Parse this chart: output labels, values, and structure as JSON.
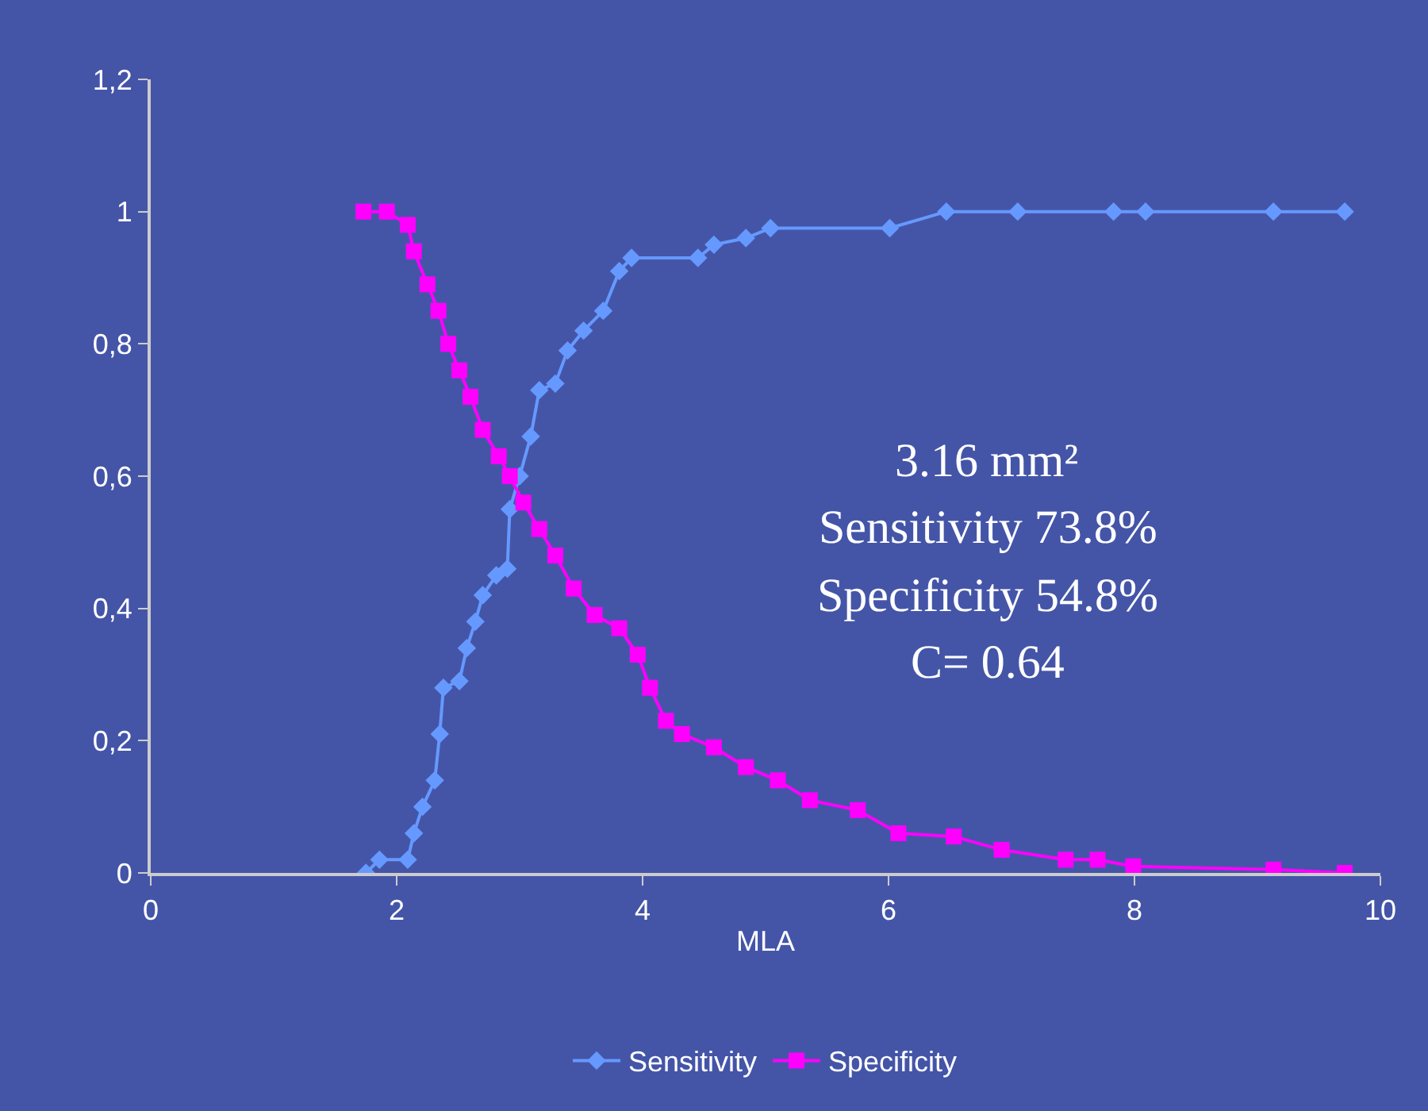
{
  "chart_data": {
    "type": "line",
    "xlabel": "MLA",
    "xlim": [
      0,
      10
    ],
    "xticks": [
      0,
      2,
      4,
      6,
      8,
      10
    ],
    "ylim": [
      0,
      1.2
    ],
    "yticks": [
      0,
      {
        "value": 0.2,
        "label": "0,2"
      },
      {
        "value": 0.4,
        "label": "0,4"
      },
      {
        "value": 0.6,
        "label": "0,6"
      },
      {
        "value": 0.8,
        "label": "0,8"
      },
      1,
      {
        "value": 1.2,
        "label": "1,2"
      }
    ],
    "grid": false,
    "legend": "bottom",
    "series": [
      {
        "name": "Sensitivity",
        "color": "#6699ff",
        "marker": "diamond",
        "x": [
          1.75,
          1.86,
          2.09,
          2.14,
          2.21,
          2.31,
          2.35,
          2.38,
          2.51,
          2.57,
          2.64,
          2.7,
          2.81,
          2.9,
          2.92,
          3.0,
          3.09,
          3.16,
          3.29,
          3.39,
          3.52,
          3.68,
          3.81,
          3.91,
          4.45,
          4.58,
          4.84,
          5.04,
          6.01,
          6.47,
          7.05,
          7.83,
          8.09,
          9.13,
          9.71
        ],
        "values": [
          0,
          0.02,
          0.02,
          0.06,
          0.1,
          0.14,
          0.21,
          0.28,
          0.29,
          0.34,
          0.38,
          0.42,
          0.45,
          0.46,
          0.55,
          0.6,
          0.66,
          0.73,
          0.74,
          0.79,
          0.82,
          0.85,
          0.91,
          0.93,
          0.93,
          0.95,
          0.96,
          0.975,
          0.975,
          1,
          1,
          1,
          1,
          1,
          1
        ]
      },
      {
        "name": "Specificity",
        "color": "#ff00ff",
        "marker": "square",
        "x": [
          1.73,
          1.92,
          2.09,
          2.14,
          2.25,
          2.34,
          2.42,
          2.51,
          2.6,
          2.7,
          2.83,
          2.92,
          3.03,
          3.16,
          3.29,
          3.44,
          3.61,
          3.81,
          3.96,
          4.06,
          4.19,
          4.32,
          4.58,
          4.84,
          5.1,
          5.36,
          5.75,
          6.08,
          6.53,
          6.92,
          7.44,
          7.7,
          7.99,
          9.13,
          9.71
        ],
        "values": [
          1,
          1,
          0.98,
          0.94,
          0.89,
          0.85,
          0.8,
          0.76,
          0.72,
          0.67,
          0.63,
          0.6,
          0.56,
          0.52,
          0.48,
          0.43,
          0.39,
          0.37,
          0.33,
          0.28,
          0.23,
          0.21,
          0.19,
          0.16,
          0.14,
          0.11,
          0.095,
          0.06,
          0.055,
          0.035,
          0.02,
          0.02,
          0.01,
          0.005,
          0
        ]
      }
    ],
    "annotations": [
      "3.16 mm²",
      "Sensitivity 73.8%",
      "Specificity 54.8%",
      "C= 0.64"
    ]
  }
}
